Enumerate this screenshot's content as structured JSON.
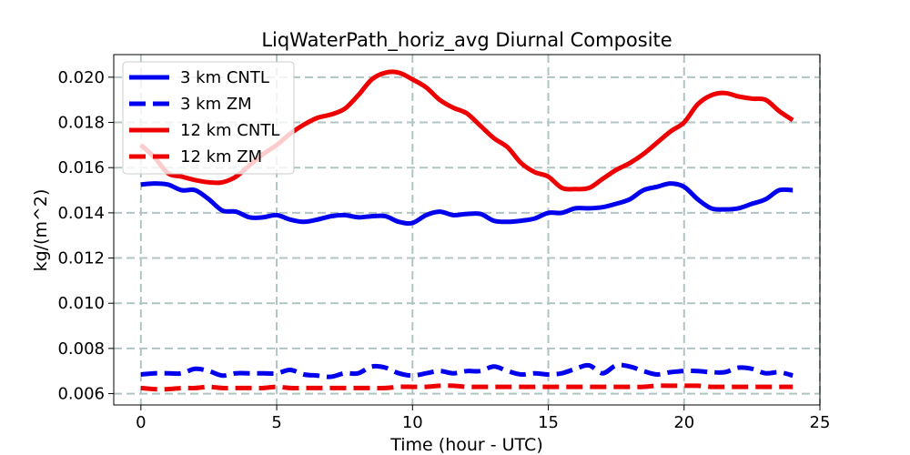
{
  "chart_data": {
    "type": "line",
    "title": "LiqWaterPath_horiz_avg Diurnal Composite",
    "xlabel": "Time (hour - UTC)",
    "ylabel": "kg/(m^2)",
    "xlim": [
      -1.0,
      25.0
    ],
    "ylim": [
      0.0055,
      0.021
    ],
    "xticks": [
      0,
      5,
      10,
      15,
      20,
      25
    ],
    "xtick_labels": [
      "0",
      "5",
      "10",
      "15",
      "20",
      "25"
    ],
    "yticks": [
      0.006,
      0.008,
      0.01,
      0.012,
      0.014,
      0.016,
      0.018,
      0.02
    ],
    "ytick_labels": [
      "0.006",
      "0.008",
      "0.010",
      "0.012",
      "0.014",
      "0.016",
      "0.018",
      "0.020"
    ],
    "grid": true,
    "legend_position": "top-left",
    "x": [
      0,
      0.5,
      1,
      1.5,
      2,
      2.5,
      3,
      3.5,
      4,
      4.5,
      5,
      5.5,
      6,
      6.5,
      7,
      7.5,
      8,
      8.5,
      9,
      9.5,
      10,
      10.5,
      11,
      11.5,
      12,
      12.5,
      13,
      13.5,
      14,
      14.5,
      15,
      15.5,
      16,
      16.5,
      17,
      17.5,
      18,
      18.5,
      19,
      19.5,
      20,
      20.5,
      21,
      21.5,
      22,
      22.5,
      23,
      23.5,
      24
    ],
    "series": [
      {
        "name": "3 km CNTL",
        "color": "#0000ee",
        "style": "solid",
        "values": [
          0.01525,
          0.0153,
          0.01525,
          0.015,
          0.015,
          0.0146,
          0.0141,
          0.01405,
          0.0138,
          0.0138,
          0.0139,
          0.0137,
          0.0136,
          0.0137,
          0.01385,
          0.0139,
          0.0138,
          0.01385,
          0.01385,
          0.0136,
          0.01355,
          0.0139,
          0.01405,
          0.0139,
          0.01395,
          0.01395,
          0.01365,
          0.0136,
          0.01365,
          0.01375,
          0.014,
          0.014,
          0.0142,
          0.0142,
          0.01425,
          0.0144,
          0.0146,
          0.015,
          0.01515,
          0.0153,
          0.01515,
          0.0146,
          0.0142,
          0.01415,
          0.0142,
          0.0144,
          0.0146,
          0.015,
          0.015
        ]
      },
      {
        "name": "3 km ZM",
        "color": "#0000ee",
        "style": "dashed",
        "values": [
          0.00685,
          0.0069,
          0.0069,
          0.0069,
          0.0071,
          0.007,
          0.0068,
          0.0069,
          0.0069,
          0.0069,
          0.0069,
          0.00705,
          0.00685,
          0.0068,
          0.00675,
          0.0069,
          0.0069,
          0.0072,
          0.00715,
          0.0069,
          0.0068,
          0.0069,
          0.007,
          0.0069,
          0.007,
          0.007,
          0.0072,
          0.007,
          0.00685,
          0.0069,
          0.00685,
          0.0069,
          0.0071,
          0.00725,
          0.0069,
          0.00725,
          0.0072,
          0.007,
          0.00685,
          0.00695,
          0.007,
          0.007,
          0.00695,
          0.00695,
          0.00715,
          0.0071,
          0.0069,
          0.00695,
          0.0068
        ]
      },
      {
        "name": "12 km CNTL",
        "color": "#ee0000",
        "style": "solid",
        "values": [
          0.017,
          0.01645,
          0.01575,
          0.0156,
          0.01545,
          0.01535,
          0.01535,
          0.0156,
          0.0161,
          0.0166,
          0.017,
          0.0175,
          0.0179,
          0.0182,
          0.01835,
          0.0186,
          0.0192,
          0.0199,
          0.0202,
          0.0202,
          0.0199,
          0.01955,
          0.019,
          0.01865,
          0.0184,
          0.01785,
          0.0173,
          0.0169,
          0.0162,
          0.0158,
          0.0156,
          0.0151,
          0.01505,
          0.0151,
          0.0155,
          0.0159,
          0.0162,
          0.0166,
          0.0171,
          0.0176,
          0.018,
          0.0188,
          0.0192,
          0.0193,
          0.01915,
          0.01905,
          0.019,
          0.0185,
          0.0181
        ]
      },
      {
        "name": "12 km ZM",
        "color": "#ee0000",
        "style": "dashed",
        "values": [
          0.00625,
          0.0062,
          0.0062,
          0.00625,
          0.00625,
          0.0063,
          0.00625,
          0.00625,
          0.00625,
          0.00625,
          0.0063,
          0.00625,
          0.00625,
          0.00625,
          0.00625,
          0.00625,
          0.00625,
          0.00625,
          0.00625,
          0.0063,
          0.0063,
          0.0063,
          0.00635,
          0.00635,
          0.0063,
          0.0063,
          0.0063,
          0.0063,
          0.0063,
          0.0063,
          0.0063,
          0.0063,
          0.0063,
          0.0063,
          0.0063,
          0.0063,
          0.0063,
          0.0063,
          0.00635,
          0.00635,
          0.00635,
          0.00635,
          0.0063,
          0.0063,
          0.0063,
          0.0063,
          0.0063,
          0.0063,
          0.0063
        ]
      }
    ]
  }
}
